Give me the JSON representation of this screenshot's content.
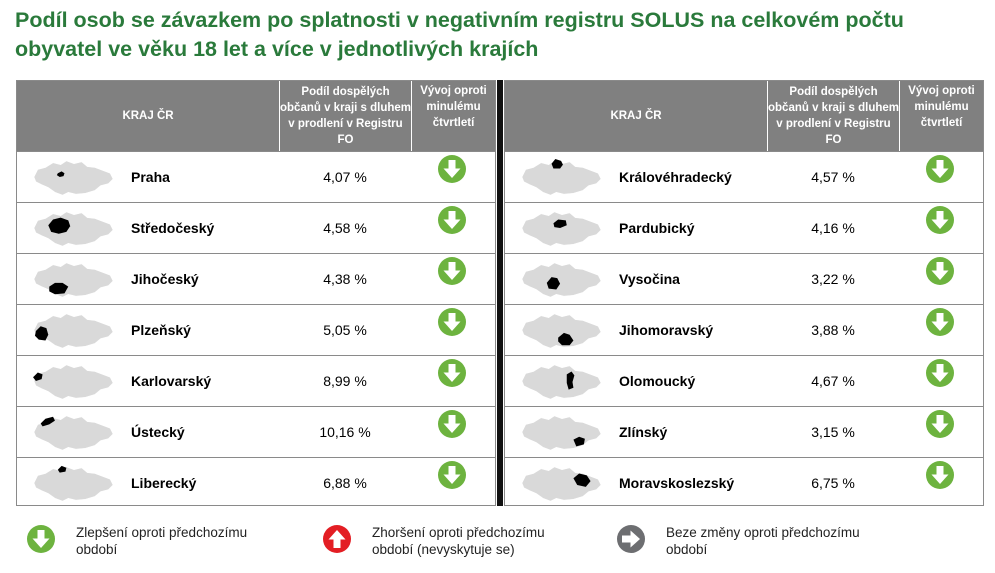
{
  "title": "Podíl osob se závazkem po splatnosti v negativním registru SOLUS na celkovém počtu obyvatel ve věku 18 let a více v jednotlivých krajích",
  "colors": {
    "title": "#2a7a3b",
    "header_bg": "#808080",
    "improve": "#6db33f",
    "worsen": "#e31e24",
    "nochange": "#6d6e71",
    "map_fill": "#d9d9d9",
    "region_fill": "#000000"
  },
  "table": {
    "headers": {
      "kraj": "KRAJ ČR",
      "podil": "Podíl dospělých občanů v kraji s dluhem v prodlení v Registru FO",
      "vyvoj": "Vývoj oproti minulému čtvrtletí"
    },
    "left_rows": [
      {
        "kraj": "Praha",
        "podil": "4,07 %",
        "trend": "improve-arrow-icon"
      },
      {
        "kraj": "Středočeský",
        "podil": "4,58 %",
        "trend": "improve-arrow-icon"
      },
      {
        "kraj": "Jihočeský",
        "podil": "4,38 %",
        "trend": "improve-arrow-icon"
      },
      {
        "kraj": "Plzeňský",
        "podil": "5,05 %",
        "trend": "improve-arrow-icon"
      },
      {
        "kraj": "Karlovarský",
        "podil": "8,99 %",
        "trend": "improve-arrow-icon"
      },
      {
        "kraj": "Ústecký",
        "podil": "10,16 %",
        "trend": "improve-arrow-icon"
      },
      {
        "kraj": "Liberecký",
        "podil": "6,88 %",
        "trend": "improve-arrow-icon"
      }
    ],
    "right_rows": [
      {
        "kraj": "Královéhradecký",
        "podil": "4,57 %",
        "trend": "improve-arrow-icon"
      },
      {
        "kraj": "Pardubický",
        "podil": "4,16 %",
        "trend": "improve-arrow-icon"
      },
      {
        "kraj": "Vysočina",
        "podil": "3,22 %",
        "trend": "improve-arrow-icon"
      },
      {
        "kraj": "Jihomoravský",
        "podil": "3,88 %",
        "trend": "improve-arrow-icon"
      },
      {
        "kraj": "Olomoucký",
        "podil": "4,67 %",
        "trend": "improve-arrow-icon"
      },
      {
        "kraj": "Zlínský",
        "podil": "3,15 %",
        "trend": "improve-arrow-icon"
      },
      {
        "kraj": "Moravskoslezský",
        "podil": "6,75 %",
        "trend": "improve-arrow-icon"
      }
    ]
  },
  "legend": {
    "improve": "Zlepšení oproti předchozímu období",
    "worsen": "Zhoršení oproti předchozímu období (nevyskytuje se)",
    "nochange": "Beze změny oproti předchozímu období"
  }
}
